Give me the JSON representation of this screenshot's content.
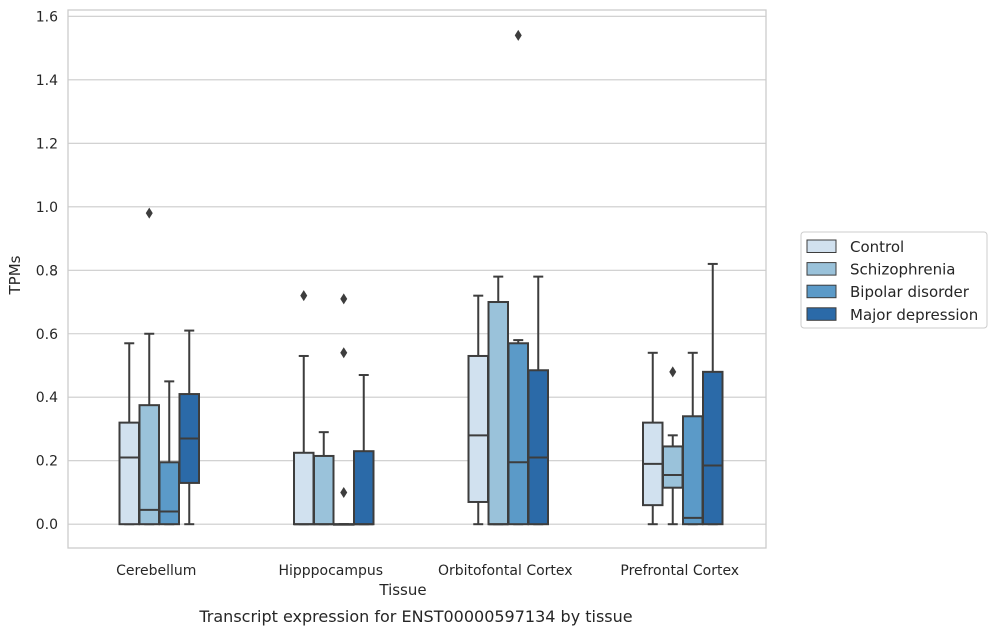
{
  "chart_data": {
    "type": "boxplot",
    "title": "",
    "caption": "Transcript expression for ENST00000597134 by tissue",
    "xlabel": "Tissue",
    "ylabel": "TPMs",
    "ylim": [
      -0.075,
      1.62
    ],
    "yticks": [
      0.0,
      0.2,
      0.4,
      0.6,
      0.8,
      1.0,
      1.2,
      1.4,
      1.6
    ],
    "ytick_labels": [
      "0.0",
      "0.2",
      "0.4",
      "0.6",
      "0.8",
      "1.0",
      "1.2",
      "1.4",
      "1.6"
    ],
    "grid": "horizontal",
    "legend_placement": "right, outside plot",
    "categories": [
      "Cerebellum",
      "Hipppocampus",
      "Orbitofontal Cortex",
      "Prefrontal Cortex"
    ],
    "series": [
      {
        "name": "Control",
        "color": "#d1e1ef",
        "boxes": [
          {
            "whislo": 0.0,
            "q1": 0.0,
            "med": 0.21,
            "q3": 0.32,
            "whishi": 0.57,
            "fliers": []
          },
          {
            "whislo": 0.0,
            "q1": 0.0,
            "med": 0.0,
            "q3": 0.225,
            "whishi": 0.53,
            "fliers": [
              0.72
            ]
          },
          {
            "whislo": 0.0,
            "q1": 0.07,
            "med": 0.28,
            "q3": 0.53,
            "whishi": 0.72,
            "fliers": []
          },
          {
            "whislo": 0.0,
            "q1": 0.06,
            "med": 0.19,
            "q3": 0.32,
            "whishi": 0.54,
            "fliers": []
          }
        ]
      },
      {
        "name": "Schizophrenia",
        "color": "#9ac2da",
        "boxes": [
          {
            "whislo": 0.0,
            "q1": 0.0,
            "med": 0.045,
            "q3": 0.375,
            "whishi": 0.6,
            "fliers": [
              0.98
            ]
          },
          {
            "whislo": 0.0,
            "q1": 0.0,
            "med": 0.0,
            "q3": 0.215,
            "whishi": 0.29,
            "fliers": []
          },
          {
            "whislo": 0.0,
            "q1": 0.0,
            "med": 0.0,
            "q3": 0.7,
            "whishi": 0.78,
            "fliers": []
          },
          {
            "whislo": 0.0,
            "q1": 0.115,
            "med": 0.155,
            "q3": 0.245,
            "whishi": 0.28,
            "fliers": [
              0.48
            ]
          }
        ]
      },
      {
        "name": "Bipolar disorder",
        "color": "#5b9ac8",
        "boxes": [
          {
            "whislo": 0.0,
            "q1": 0.0,
            "med": 0.04,
            "q3": 0.195,
            "whishi": 0.45,
            "fliers": []
          },
          {
            "whislo": 0.0,
            "q1": 0.0,
            "med": 0.0,
            "q3": 0.0,
            "whishi": 0.0,
            "fliers": [
              0.1,
              0.54,
              0.71
            ]
          },
          {
            "whislo": 0.0,
            "q1": 0.0,
            "med": 0.195,
            "q3": 0.57,
            "whishi": 0.58,
            "fliers": [
              1.54
            ]
          },
          {
            "whislo": 0.0,
            "q1": 0.0,
            "med": 0.02,
            "q3": 0.34,
            "whishi": 0.54,
            "fliers": []
          }
        ]
      },
      {
        "name": "Major depression",
        "color": "#2b6aa8",
        "boxes": [
          {
            "whislo": 0.0,
            "q1": 0.13,
            "med": 0.27,
            "q3": 0.41,
            "whishi": 0.61,
            "fliers": []
          },
          {
            "whislo": 0.0,
            "q1": 0.0,
            "med": 0.0,
            "q3": 0.23,
            "whishi": 0.47,
            "fliers": []
          },
          {
            "whislo": 0.0,
            "q1": 0.0,
            "med": 0.21,
            "q3": 0.485,
            "whishi": 0.78,
            "fliers": []
          },
          {
            "whislo": 0.0,
            "q1": 0.0,
            "med": 0.185,
            "q3": 0.48,
            "whishi": 0.82,
            "fliers": []
          }
        ]
      }
    ]
  }
}
